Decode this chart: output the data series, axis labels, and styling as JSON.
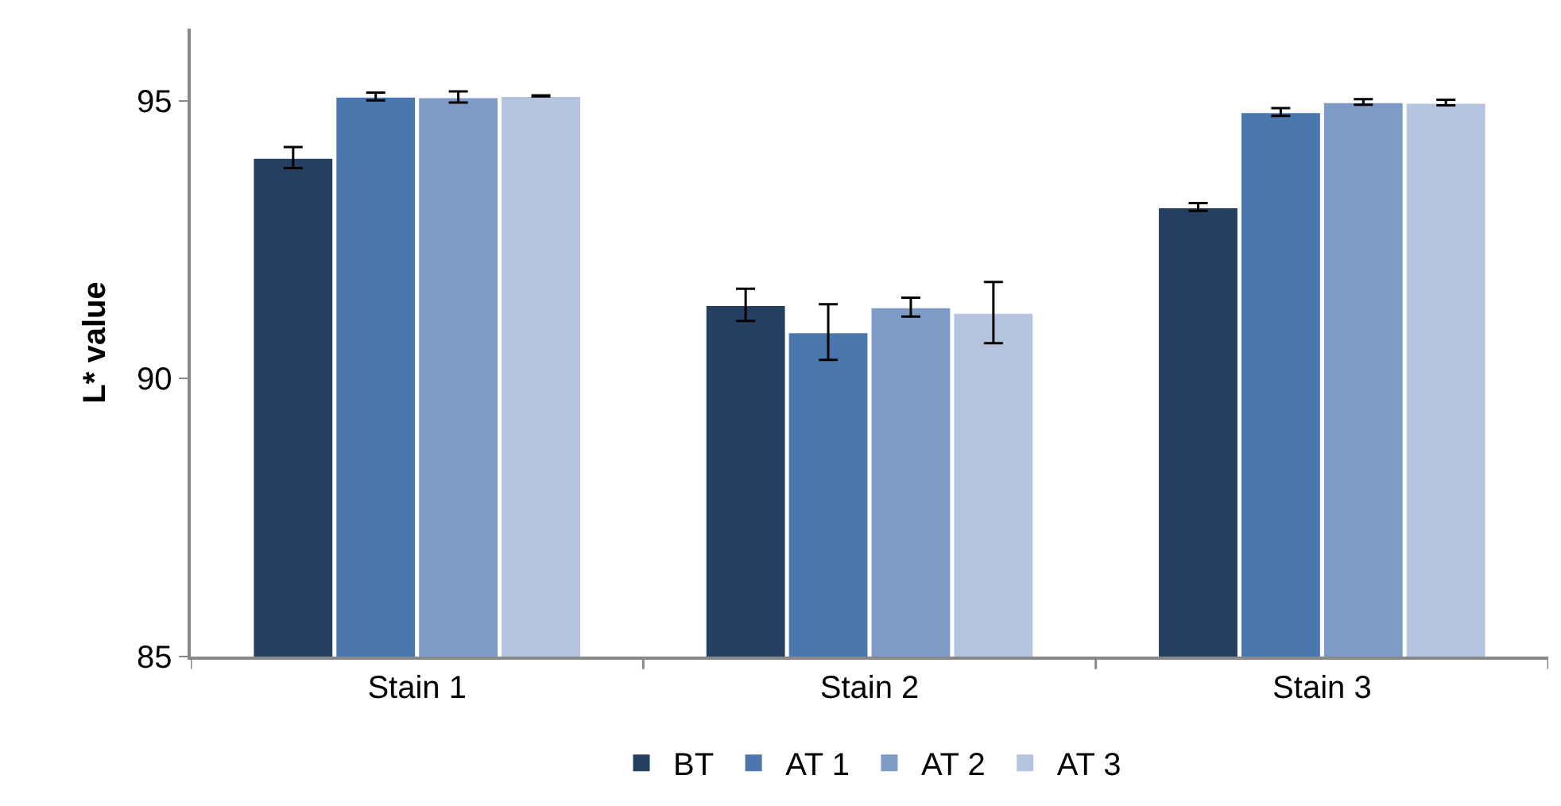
{
  "chart_data": {
    "type": "bar",
    "ylabel": "L* value",
    "categories": [
      "Stain 1",
      "Stain 2",
      "Stain 3"
    ],
    "series": [
      {
        "name": "BT",
        "color": "#243f60",
        "values": [
          93.98,
          91.33,
          93.09
        ],
        "errors": [
          0.19,
          0.29,
          0.07
        ]
      },
      {
        "name": "AT 1",
        "color": "#4a77ae",
        "values": [
          95.08,
          90.84,
          94.8
        ],
        "errors": [
          0.07,
          0.5,
          0.07
        ]
      },
      {
        "name": "AT 2",
        "color": "#7e9bc8",
        "values": [
          95.07,
          91.29,
          94.98
        ],
        "errors": [
          0.1,
          0.17,
          0.05
        ]
      },
      {
        "name": "AT 3",
        "color": "#b4c3de",
        "values": [
          95.09,
          91.19,
          94.97
        ],
        "errors": [
          0.01,
          0.55,
          0.05
        ]
      }
    ],
    "ylim": [
      85,
      96.3
    ],
    "yticks": [
      85,
      90,
      95
    ],
    "grid": false,
    "legend": "bottom"
  }
}
